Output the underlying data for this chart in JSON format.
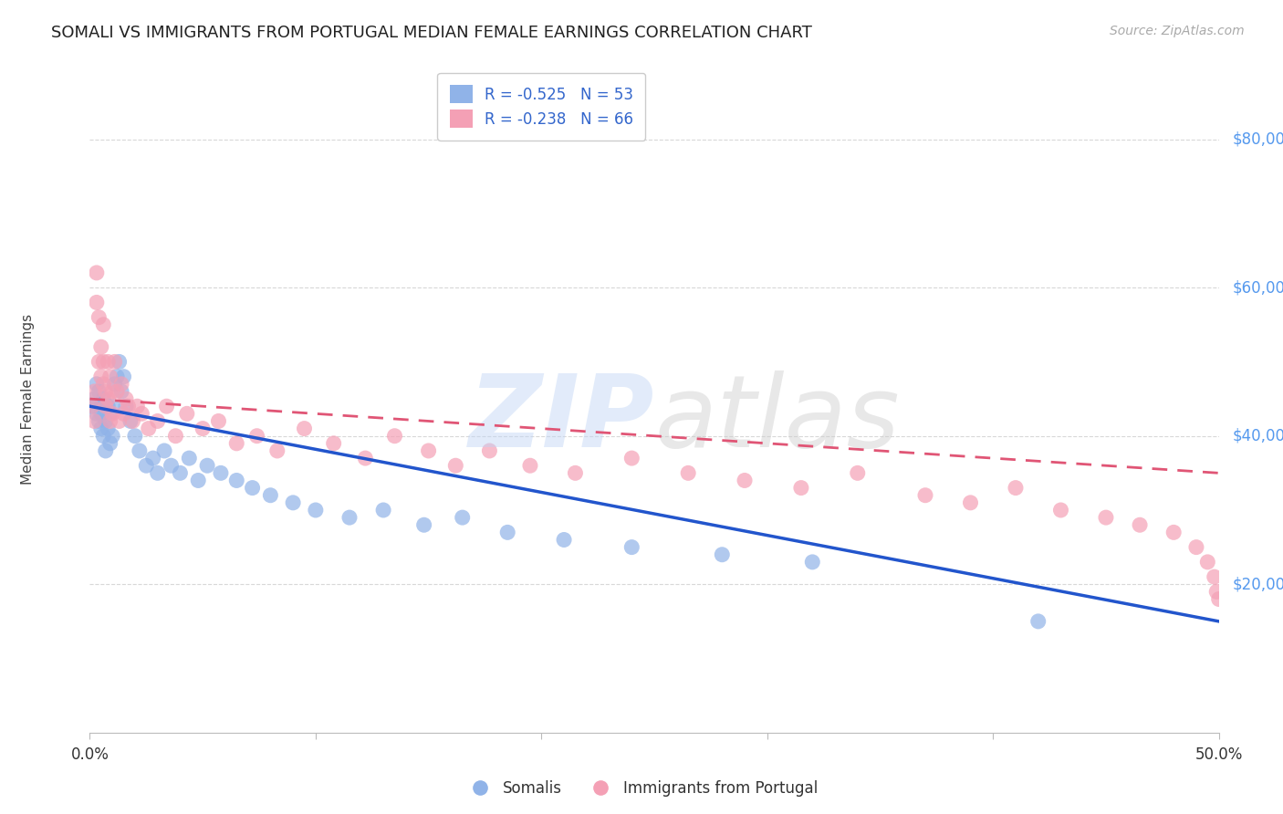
{
  "title": "SOMALI VS IMMIGRANTS FROM PORTUGAL MEDIAN FEMALE EARNINGS CORRELATION CHART",
  "source": "Source: ZipAtlas.com",
  "ylabel": "Median Female Earnings",
  "xlim": [
    0.0,
    0.5
  ],
  "ylim": [
    0,
    90000
  ],
  "somali_R": -0.525,
  "somali_N": 53,
  "portugal_R": -0.238,
  "portugal_N": 66,
  "somali_color": "#90b3e8",
  "portugal_color": "#f4a0b5",
  "somali_line_color": "#2255cc",
  "portugal_line_color": "#e05575",
  "background_color": "#ffffff",
  "grid_color": "#d8d8d8",
  "title_color": "#222222",
  "axis_label_color": "#444444",
  "legend_text_color": "#3366cc",
  "ytick_color": "#5599ee",
  "somali_x": [
    0.001,
    0.002,
    0.003,
    0.003,
    0.004,
    0.004,
    0.005,
    0.005,
    0.005,
    0.006,
    0.006,
    0.007,
    0.007,
    0.008,
    0.008,
    0.009,
    0.009,
    0.01,
    0.01,
    0.011,
    0.012,
    0.013,
    0.014,
    0.015,
    0.016,
    0.018,
    0.02,
    0.022,
    0.025,
    0.028,
    0.03,
    0.033,
    0.036,
    0.04,
    0.044,
    0.048,
    0.052,
    0.058,
    0.065,
    0.072,
    0.08,
    0.09,
    0.1,
    0.115,
    0.13,
    0.148,
    0.165,
    0.185,
    0.21,
    0.24,
    0.28,
    0.32,
    0.42
  ],
  "somali_y": [
    44000,
    45000,
    47000,
    43000,
    46000,
    42000,
    44000,
    41000,
    43000,
    45000,
    40000,
    42000,
    38000,
    44000,
    41000,
    39000,
    43000,
    44000,
    40000,
    47000,
    48000,
    50000,
    46000,
    48000,
    44000,
    42000,
    40000,
    38000,
    36000,
    37000,
    35000,
    38000,
    36000,
    35000,
    37000,
    34000,
    36000,
    35000,
    34000,
    33000,
    32000,
    31000,
    30000,
    29000,
    30000,
    28000,
    29000,
    27000,
    26000,
    25000,
    24000,
    23000,
    15000
  ],
  "portugal_x": [
    0.001,
    0.002,
    0.002,
    0.003,
    0.003,
    0.004,
    0.004,
    0.005,
    0.005,
    0.006,
    0.006,
    0.006,
    0.007,
    0.007,
    0.008,
    0.008,
    0.009,
    0.009,
    0.01,
    0.01,
    0.011,
    0.012,
    0.013,
    0.014,
    0.015,
    0.016,
    0.017,
    0.019,
    0.021,
    0.023,
    0.026,
    0.03,
    0.034,
    0.038,
    0.043,
    0.05,
    0.057,
    0.065,
    0.074,
    0.083,
    0.095,
    0.108,
    0.122,
    0.135,
    0.15,
    0.162,
    0.177,
    0.195,
    0.215,
    0.24,
    0.265,
    0.29,
    0.315,
    0.34,
    0.37,
    0.39,
    0.41,
    0.43,
    0.45,
    0.465,
    0.48,
    0.49,
    0.495,
    0.498,
    0.499,
    0.5
  ],
  "portugal_y": [
    44000,
    42000,
    46000,
    62000,
    58000,
    56000,
    50000,
    52000,
    48000,
    55000,
    47000,
    50000,
    46000,
    44000,
    50000,
    45000,
    42000,
    48000,
    46000,
    43000,
    50000,
    46000,
    42000,
    47000,
    43000,
    45000,
    44000,
    42000,
    44000,
    43000,
    41000,
    42000,
    44000,
    40000,
    43000,
    41000,
    42000,
    39000,
    40000,
    38000,
    41000,
    39000,
    37000,
    40000,
    38000,
    36000,
    38000,
    36000,
    35000,
    37000,
    35000,
    34000,
    33000,
    35000,
    32000,
    31000,
    33000,
    30000,
    29000,
    28000,
    27000,
    25000,
    23000,
    21000,
    19000,
    18000
  ],
  "somali_line_x0": 0.0,
  "somali_line_y0": 44000,
  "somali_line_x1": 0.5,
  "somali_line_y1": 15000,
  "portugal_line_x0": 0.0,
  "portugal_line_y0": 45000,
  "portugal_line_x1": 0.5,
  "portugal_line_y1": 35000
}
